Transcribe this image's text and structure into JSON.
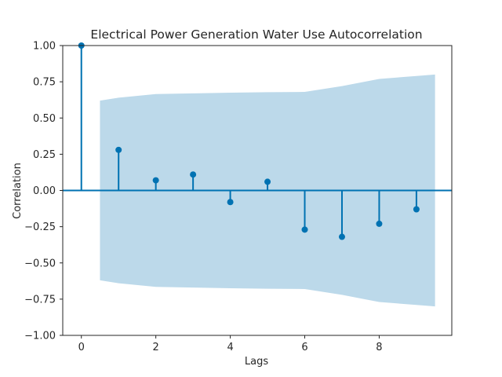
{
  "chart_data": {
    "type": "scatter",
    "title": "Electrical Power Generation Water Use Autocorrelation",
    "xlabel": "Lags",
    "ylabel": "Correlation",
    "xlim": [
      -0.5,
      9.95
    ],
    "ylim": [
      -1.0,
      1.0
    ],
    "x_ticks": [
      0,
      2,
      4,
      6,
      8
    ],
    "x_tick_labels": [
      "0",
      "2",
      "4",
      "6",
      "8"
    ],
    "y_ticks": [
      -1.0,
      -0.75,
      -0.5,
      -0.25,
      0.0,
      0.25,
      0.5,
      0.75,
      1.0
    ],
    "y_tick_labels": [
      "−1.00",
      "−0.75",
      "−0.50",
      "−0.25",
      "0.00",
      "0.25",
      "0.50",
      "0.75",
      "1.00"
    ],
    "grid": false,
    "colors": {
      "stem": "#0072b2",
      "confidence_band": "#bcd9ea",
      "axes": "#262626"
    },
    "series": [
      {
        "x": [
          0,
          1,
          2,
          3,
          4,
          5,
          6,
          7,
          8,
          9
        ],
        "values": [
          1.0,
          0.28,
          0.07,
          0.11,
          -0.08,
          0.06,
          -0.27,
          -0.32,
          -0.23,
          -0.13
        ]
      }
    ],
    "confidence_band": {
      "x": [
        0.5,
        1,
        2,
        3,
        4,
        5,
        6,
        7,
        8,
        9,
        9.5
      ],
      "upper": [
        0.62,
        0.64,
        0.665,
        0.67,
        0.675,
        0.678,
        0.68,
        0.72,
        0.77,
        0.79,
        0.8
      ],
      "lower": [
        -0.62,
        -0.64,
        -0.665,
        -0.67,
        -0.675,
        -0.678,
        -0.68,
        -0.72,
        -0.77,
        -0.79,
        -0.8
      ]
    }
  }
}
